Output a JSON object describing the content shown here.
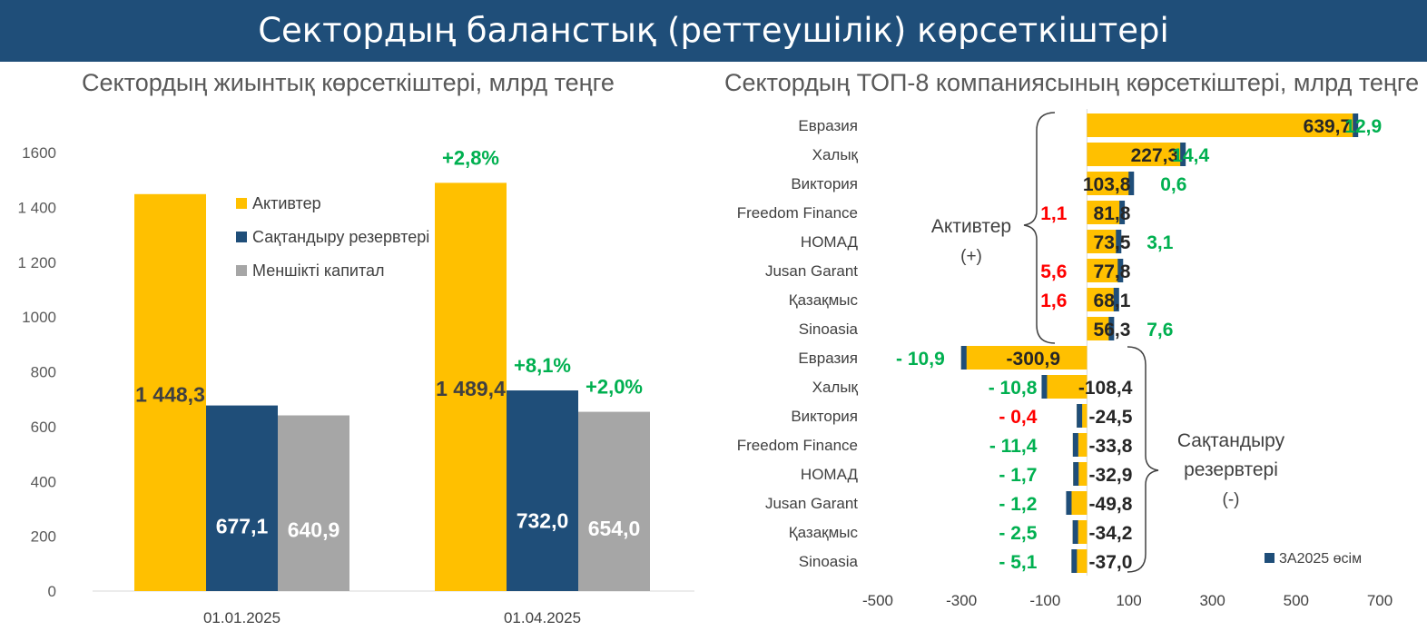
{
  "header": {
    "title": "Сектордың балanстық (реттеушілік) көрсеткіштері"
  },
  "subtitles": {
    "left": "Сектордың жиынтық көрсеткіштері, млрд теңге",
    "right": "Сектордың ТОП-8 компаниясының көрсеткіштері, млрд теңге"
  },
  "colors": {
    "assets": "#ffc000",
    "reserves": "#1f4e79",
    "equity": "#a6a6a6",
    "positive": "#00b050",
    "negative": "#ff0000",
    "label": "#404040"
  },
  "chart_data": [
    {
      "type": "bar",
      "categories": [
        "01.01.2025",
        "01.04.2025"
      ],
      "series": [
        {
          "name": "Активтер",
          "values": [
            1448.3,
            1489.4
          ],
          "labels": [
            "1 448,3",
            "1 489,4"
          ],
          "change": [
            "",
            "+2,8%"
          ]
        },
        {
          "name": "Сақтандыру резервтері",
          "values": [
            677.1,
            732.0
          ],
          "labels": [
            "677,1",
            "732,0"
          ],
          "change": [
            "",
            "+8,1%"
          ]
        },
        {
          "name": "Меншікті капитал",
          "values": [
            640.9,
            654.0
          ],
          "labels": [
            "640,9",
            "654,0"
          ],
          "change": [
            "",
            "+2,0%"
          ]
        }
      ],
      "ylim": [
        0,
        1600
      ],
      "yticks": [
        "0",
        "200",
        "400",
        "600",
        "800",
        "1000",
        "1 200",
        "1 400",
        "1600"
      ],
      "legend_position": "top-right"
    },
    {
      "type": "bar",
      "orientation": "horizontal",
      "xlim": [
        -500,
        700
      ],
      "xticks": [
        "-500",
        "-300",
        "-100",
        "100",
        "300",
        "500",
        "700"
      ],
      "legend": "3А2025 өсім",
      "group_labels": {
        "assets": [
          "Активтер",
          "(+)"
        ],
        "reserves": [
          "Сақтандыру",
          "резервтері",
          "(-)"
        ]
      },
      "rows": [
        {
          "company": "Евразия",
          "value": 639.7,
          "growth": 12.9,
          "value_label": "639,7",
          "growth_label": "12,9",
          "growth_sign": "positive"
        },
        {
          "company": "Халық",
          "value": 227.3,
          "growth": 14.4,
          "value_label": "227,3",
          "growth_label": "14,4",
          "growth_sign": "positive"
        },
        {
          "company": "Виктория",
          "value": 103.8,
          "growth": 0.6,
          "value_label": "103,8",
          "growth_label": "0,6",
          "growth_sign": "positive"
        },
        {
          "company": "Freedom Finance",
          "value": 81.8,
          "growth": -1.1,
          "value_label": "81,8",
          "growth_label": "1,1",
          "growth_sign": "negative"
        },
        {
          "company": "НОМАД",
          "value": 73.5,
          "growth": 3.1,
          "value_label": "73,5",
          "growth_label": "3,1",
          "growth_sign": "positive"
        },
        {
          "company": "Jusan Garant",
          "value": 77.8,
          "growth": -5.6,
          "value_label": "77,8",
          "growth_label": "5,6",
          "growth_sign": "negative"
        },
        {
          "company": "Қазақмыс",
          "value": 68.1,
          "growth": -1.6,
          "value_label": "68,1",
          "growth_label": "1,6",
          "growth_sign": "negative"
        },
        {
          "company": "Sinoasia",
          "value": 56.3,
          "growth": 7.6,
          "value_label": "56,3",
          "growth_label": "7,6",
          "growth_sign": "positive"
        },
        {
          "company": "Евразия",
          "value": -300.9,
          "growth": -10.9,
          "value_label": "-300,9",
          "growth_label": "- 10,9",
          "growth_sign": "positive"
        },
        {
          "company": "Халық",
          "value": -108.4,
          "growth": -10.8,
          "value_label": "-108,4",
          "growth_label": "- 10,8",
          "growth_sign": "positive"
        },
        {
          "company": "Виктория",
          "value": -24.5,
          "growth": 0.4,
          "value_label": "-24,5",
          "growth_label": "- 0,4",
          "growth_sign": "negative"
        },
        {
          "company": "Freedom Finance",
          "value": -33.8,
          "growth": -11.4,
          "value_label": "-33,8",
          "growth_label": "- 11,4",
          "growth_sign": "positive"
        },
        {
          "company": "НОМАД",
          "value": -32.9,
          "growth": -1.7,
          "value_label": "-32,9",
          "growth_label": "- 1,7",
          "growth_sign": "positive"
        },
        {
          "company": "Jusan Garant",
          "value": -49.8,
          "growth": -1.2,
          "value_label": "-49,8",
          "growth_label": "- 1,2",
          "growth_sign": "positive"
        },
        {
          "company": "Қазақмыс",
          "value": -34.2,
          "growth": -2.5,
          "value_label": "-34,2",
          "growth_label": "- 2,5",
          "growth_sign": "positive"
        },
        {
          "company": "Sinoasia",
          "value": -37.0,
          "growth": -5.1,
          "value_label": "-37,0",
          "growth_label": "- 5,1",
          "growth_sign": "positive"
        }
      ]
    }
  ]
}
